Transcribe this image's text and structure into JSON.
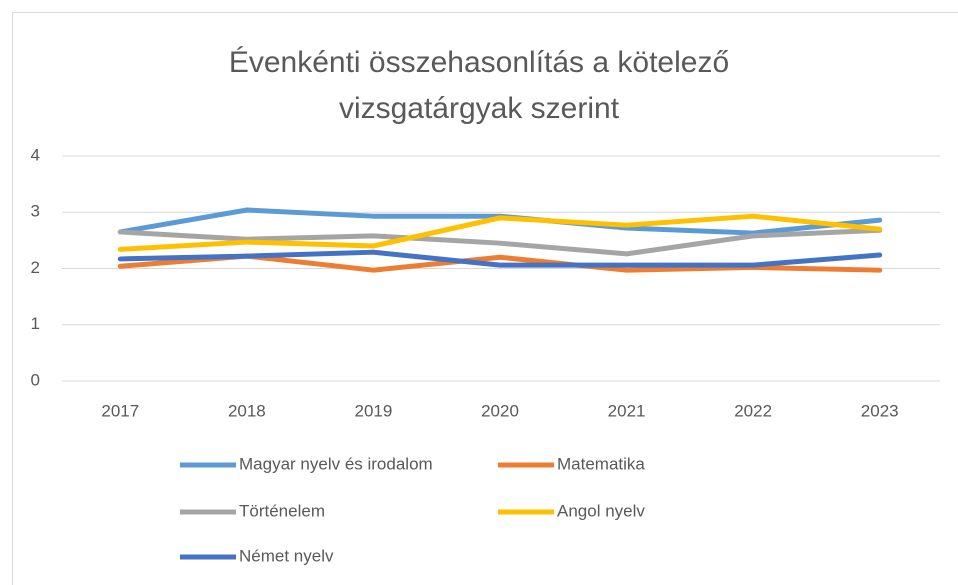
{
  "chart_data": {
    "type": "line",
    "title": "Évenkénti összehasonlítás a kötelező vizsgatárgyak szerint",
    "categories": [
      "2017",
      "2018",
      "2019",
      "2020",
      "2021",
      "2022",
      "2023"
    ],
    "series": [
      {
        "name": "Magyar nyelv és irodalom",
        "color": "#5b9bd5",
        "values": [
          2.65,
          3.04,
          2.93,
          2.93,
          2.72,
          2.63,
          2.86
        ]
      },
      {
        "name": "Matematika",
        "color": "#ed7d31",
        "values": [
          2.04,
          2.22,
          1.97,
          2.2,
          1.97,
          2.02,
          1.97
        ]
      },
      {
        "name": "Történelem",
        "color": "#a5a5a5",
        "values": [
          2.65,
          2.52,
          2.58,
          2.45,
          2.26,
          2.58,
          2.68
        ]
      },
      {
        "name": "Angol nyelv",
        "color": "#ffc000",
        "values": [
          2.34,
          2.47,
          2.4,
          2.9,
          2.77,
          2.93,
          2.7
        ]
      },
      {
        "name": "Német nyelv",
        "color": "#4472c4",
        "values": [
          2.17,
          2.22,
          2.29,
          2.06,
          2.06,
          2.06,
          2.24
        ]
      }
    ],
    "ylim": [
      0,
      4
    ],
    "yticks": [
      0,
      1,
      2,
      3,
      4
    ],
    "grid": true,
    "legend": "bottom"
  }
}
